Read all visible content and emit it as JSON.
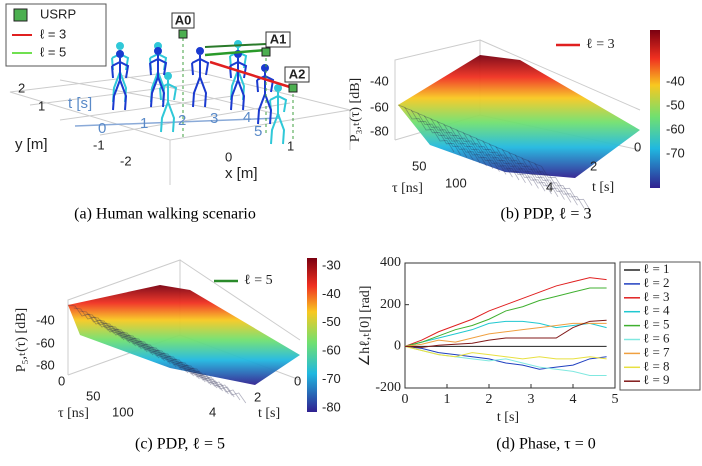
{
  "panels": [
    {
      "caption": "(a) Human walking scenario",
      "legend": [
        "USRP",
        "ℓ = 3",
        "ℓ = 5"
      ],
      "anchors": [
        "A0",
        "A1",
        "A2"
      ],
      "y_label": "y [m]",
      "x_label": "x [m]",
      "t_label": "t [s]",
      "y_ticks": [
        "2",
        "1",
        "-1",
        "-2"
      ],
      "x_ticks": [
        "0",
        "1"
      ],
      "t_ticks": [
        "0",
        "1",
        "2",
        "3",
        "4",
        "5"
      ]
    },
    {
      "caption": "(b) PDP, ℓ = 3",
      "legend": "ℓ = 3",
      "z_label": "P₃,ₜ(τ) [dB]",
      "z_ticks": [
        "-40",
        "-60",
        "-80"
      ],
      "tau_label": "τ [ns]",
      "tau_ticks": [
        "50",
        "100"
      ],
      "t_label": "t [s]",
      "t_ticks": [
        "0",
        "2",
        "4"
      ],
      "colorbar_ticks": [
        "-40",
        "-50",
        "-60",
        "-70"
      ]
    },
    {
      "caption": "(c) PDP, ℓ = 5",
      "legend": "ℓ = 5",
      "z_label": "P₅,ₜ(τ) [dB]",
      "z_ticks": [
        "-40",
        "-60",
        "-80"
      ],
      "tau_label": "τ [ns]",
      "tau_ticks": [
        "0",
        "50",
        "100"
      ],
      "t_label": "t [s]",
      "t_ticks": [
        "0",
        "2",
        "4"
      ],
      "colorbar_ticks": [
        "-30",
        "-40",
        "-50",
        "-60",
        "-70",
        "-80"
      ]
    }
  ],
  "chart_data": {
    "type": "line",
    "caption": "(d) Phase, τ = 0",
    "xlabel": "t [s]",
    "ylabel": "∠hℓ,ₜ[0] [rad]",
    "x": [
      0,
      0.4,
      0.8,
      1.2,
      1.6,
      2.0,
      2.4,
      2.8,
      3.2,
      3.6,
      4.0,
      4.4,
      4.8
    ],
    "xlim": [
      0,
      5
    ],
    "ylim": [
      -200,
      400
    ],
    "xticks": [
      0,
      1,
      2,
      3,
      4,
      5
    ],
    "yticks": [
      -200,
      0,
      200,
      400
    ],
    "series": [
      {
        "name": "ℓ = 1",
        "color": "#222222",
        "values": [
          0,
          0,
          0,
          0,
          0,
          0,
          0,
          0,
          0,
          0,
          0,
          0,
          0
        ]
      },
      {
        "name": "ℓ = 2",
        "color": "#2040c0",
        "values": [
          0,
          -10,
          -30,
          -40,
          -50,
          -60,
          -80,
          -90,
          -110,
          -100,
          -90,
          -60,
          -50
        ]
      },
      {
        "name": "ℓ = 3",
        "color": "#e02020",
        "values": [
          0,
          30,
          70,
          100,
          130,
          170,
          200,
          230,
          260,
          290,
          310,
          330,
          320
        ]
      },
      {
        "name": "ℓ = 4",
        "color": "#20c8d0",
        "values": [
          0,
          20,
          40,
          60,
          80,
          110,
          120,
          120,
          110,
          90,
          100,
          110,
          90
        ]
      },
      {
        "name": "ℓ = 5",
        "color": "#40b030",
        "values": [
          0,
          20,
          50,
          80,
          100,
          130,
          170,
          190,
          220,
          240,
          260,
          280,
          280
        ]
      },
      {
        "name": "ℓ = 6",
        "color": "#80e8e0",
        "values": [
          0,
          -20,
          -40,
          -50,
          -60,
          -70,
          -60,
          -80,
          -100,
          -110,
          -120,
          -140,
          -140
        ]
      },
      {
        "name": "ℓ = 7",
        "color": "#f0a040",
        "values": [
          0,
          10,
          30,
          20,
          40,
          60,
          70,
          80,
          90,
          100,
          110,
          110,
          110
        ]
      },
      {
        "name": "ℓ = 8",
        "color": "#e8e040",
        "values": [
          0,
          -20,
          -40,
          -50,
          -30,
          -40,
          -50,
          -60,
          -50,
          -60,
          -60,
          -50,
          -60
        ]
      },
      {
        "name": "ℓ = 9",
        "color": "#801818",
        "values": [
          0,
          -5,
          5,
          10,
          15,
          30,
          40,
          40,
          40,
          40,
          90,
          120,
          125
        ]
      }
    ]
  }
}
